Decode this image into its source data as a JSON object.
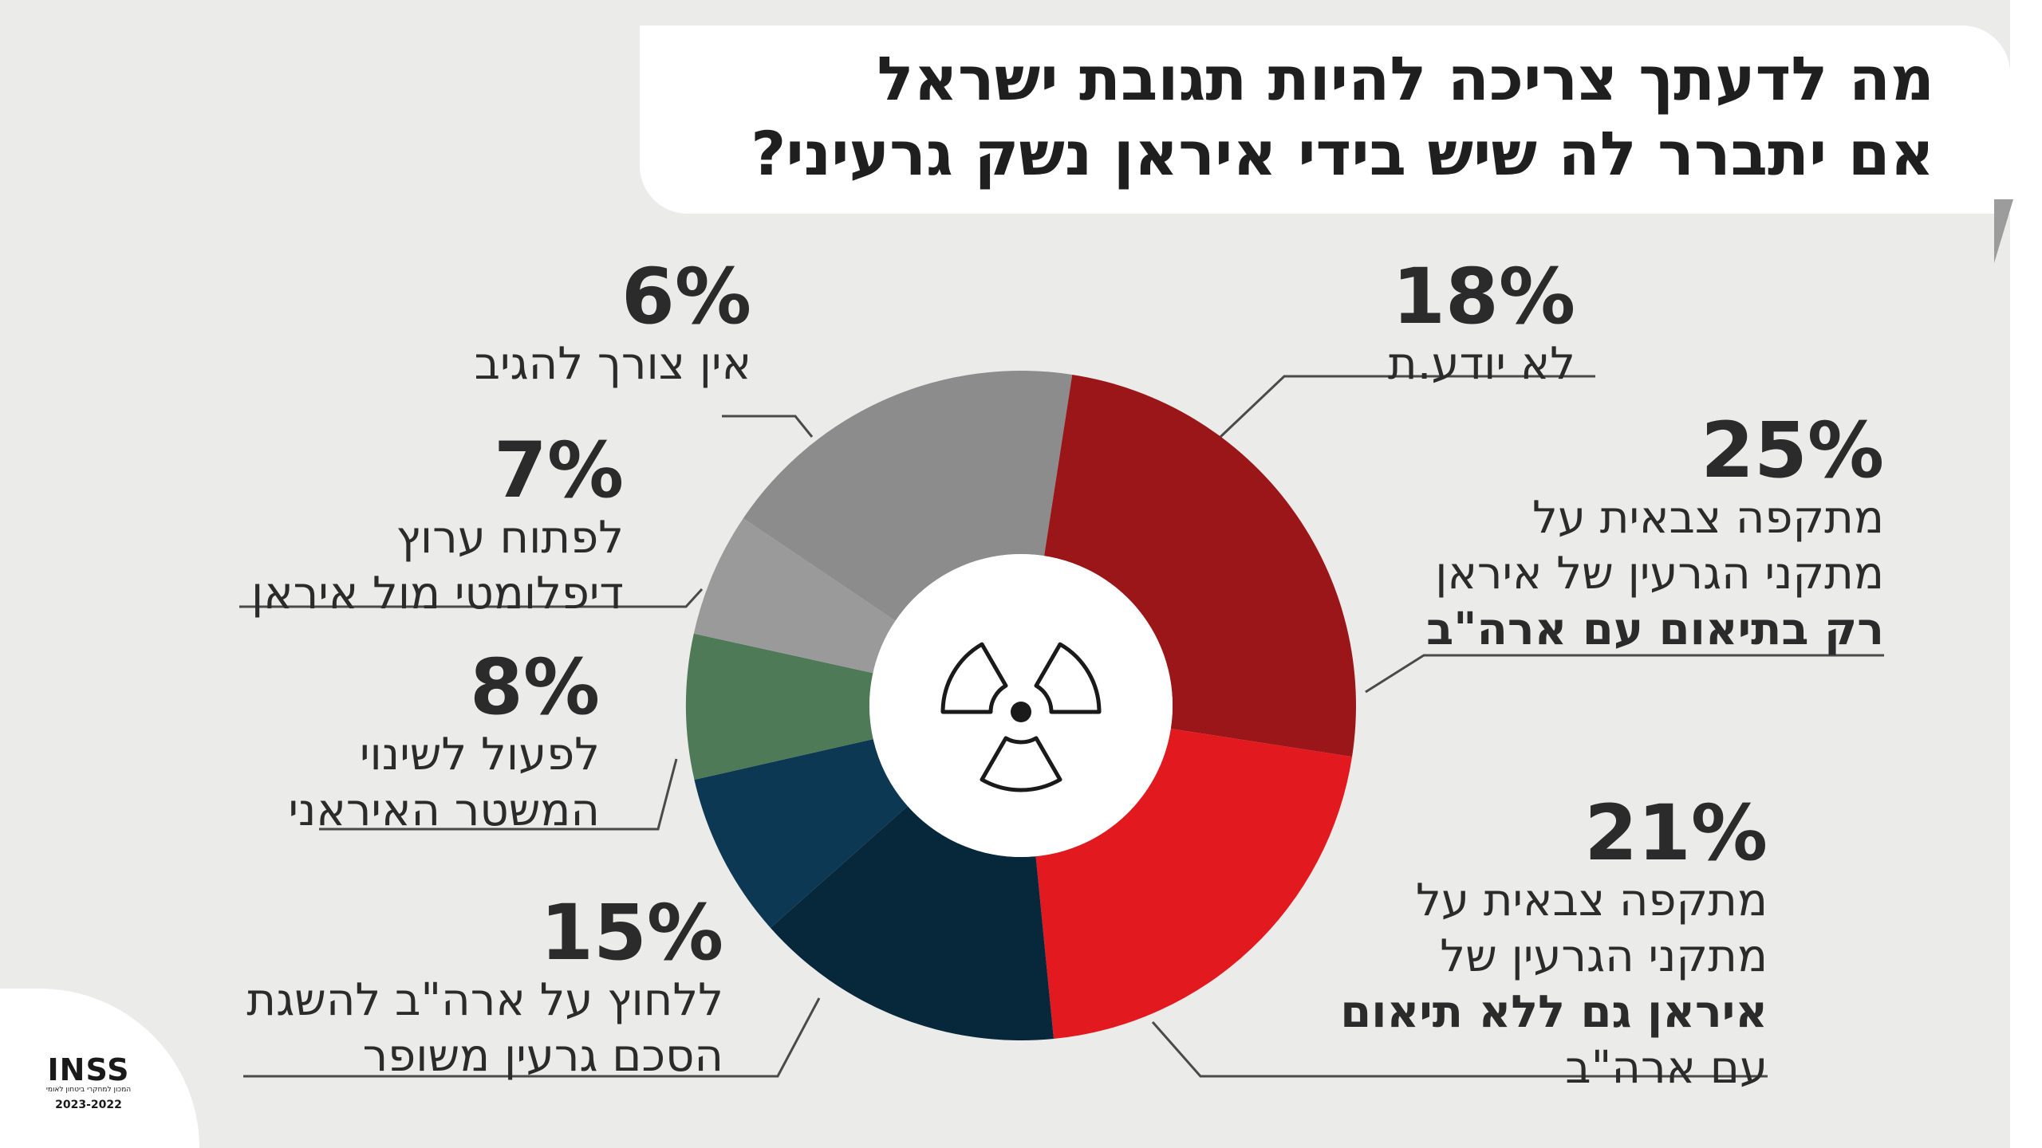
{
  "title_lines": [
    "מה לדעתך צריכה להיות תגובת ישראל",
    "אם יתברר לה שיש בידי איראן נשק גרעיני?"
  ],
  "chart_data": {
    "type": "pie",
    "title": "מה לדעתך צריכה להיות תגובת ישראל אם יתברר לה שיש בידי איראן נשק גרעיני?",
    "legend": "none",
    "slices": [
      {
        "value": 18,
        "pct_label": "18%",
        "lines": [
          "לא יודע.ת"
        ],
        "color": "#8c8c8c"
      },
      {
        "value": 25,
        "pct_label": "25%",
        "lines": [
          "מתקפה צבאית על",
          "מתקני הגרעין של איראן",
          "רק בתיאום עם ארה\"ב"
        ],
        "color": "#9b1618"
      },
      {
        "value": 21,
        "pct_label": "21%",
        "lines": [
          "מתקפה צבאית על",
          "מתקני הגרעין של",
          "איראן גם ללא תיאום",
          "עם ארה\"ב"
        ],
        "color": "#e2191f"
      },
      {
        "value": 15,
        "pct_label": "15%",
        "lines": [
          "ללחוץ על ארה\"ב להשגת",
          "הסכם גרעין משופר"
        ],
        "color": "#07273b"
      },
      {
        "value": 8,
        "pct_label": "8%",
        "lines": [
          "לפעול לשינוי",
          "המשטר האיראני"
        ],
        "color": "#0d3854"
      },
      {
        "value": 7,
        "pct_label": "7%",
        "lines": [
          "לפתוח ערוץ",
          "דיפלומטי מול איראן"
        ],
        "color": "#4e7a57"
      },
      {
        "value": 6,
        "pct_label": "6%",
        "lines": [
          "אין צורך להגיב"
        ],
        "color": "#9a9a9a"
      }
    ]
  },
  "logo": {
    "word": "INSS",
    "subtitle": "המכון למחקרי ביטחון לאומי",
    "years": "2023-2022"
  },
  "icons": {
    "center": "radiation-icon"
  }
}
